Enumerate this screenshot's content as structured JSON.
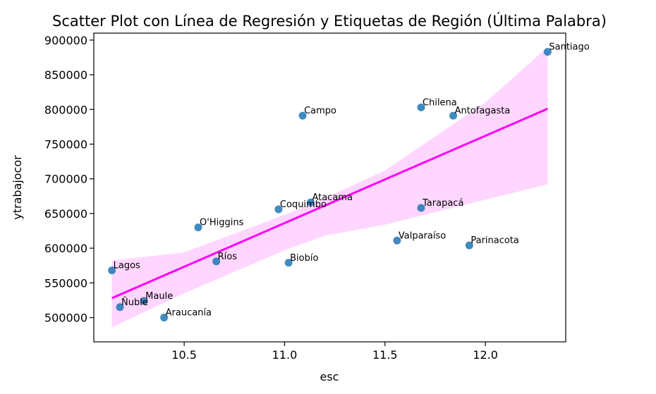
{
  "chart_data": {
    "type": "scatter",
    "title": "Scatter Plot con Línea de Regresión y Etiquetas de Región (Última Palabra)",
    "xlabel": "esc",
    "ylabel": "ytrabajocor",
    "xlim": [
      10.05,
      12.4
    ],
    "ylim": [
      465000,
      910000
    ],
    "x_ticks": [
      10.5,
      11.0,
      11.5,
      12.0
    ],
    "x_tick_labels": [
      "10.5",
      "11.0",
      "11.5",
      "12.0"
    ],
    "y_ticks": [
      500000,
      550000,
      600000,
      650000,
      700000,
      750000,
      800000,
      850000,
      900000
    ],
    "y_tick_labels": [
      "500000",
      "550000",
      "600000",
      "650000",
      "700000",
      "750000",
      "800000",
      "850000",
      "900000"
    ],
    "grid": false,
    "colors": {
      "points": "#1f77b4",
      "regression_line": "#ff00ff",
      "confidence_band": "#ff00ff"
    },
    "points": [
      {
        "label": "Santiago",
        "x": 12.31,
        "y": 883000
      },
      {
        "label": "Chilena",
        "x": 11.68,
        "y": 803000
      },
      {
        "label": "Antofagasta",
        "x": 11.84,
        "y": 791000
      },
      {
        "label": "Campo",
        "x": 11.09,
        "y": 791000
      },
      {
        "label": "Atacama",
        "x": 11.13,
        "y": 666000
      },
      {
        "label": "Coquimbo",
        "x": 10.97,
        "y": 656000
      },
      {
        "label": "Tarapacá",
        "x": 11.68,
        "y": 658000
      },
      {
        "label": "O'Higgins",
        "x": 10.57,
        "y": 630000
      },
      {
        "label": "Valparaíso",
        "x": 11.56,
        "y": 611000
      },
      {
        "label": "Parinacota",
        "x": 11.92,
        "y": 604000
      },
      {
        "label": "Ríos",
        "x": 10.66,
        "y": 581000
      },
      {
        "label": "Biobío",
        "x": 11.02,
        "y": 579000
      },
      {
        "label": "Lagos",
        "x": 10.14,
        "y": 568000
      },
      {
        "label": "Maule",
        "x": 10.3,
        "y": 524000
      },
      {
        "label": "Ñuble",
        "x": 10.18,
        "y": 515000
      },
      {
        "label": "Araucanía",
        "x": 10.4,
        "y": 500000
      }
    ],
    "regression": {
      "x": [
        10.14,
        12.31
      ],
      "y": [
        528000,
        801000
      ]
    },
    "confidence_band": {
      "x": [
        10.14,
        10.5,
        11.0,
        11.2,
        11.5,
        12.0,
        12.31
      ],
      "lower": [
        486000,
        535000,
        597000,
        618000,
        634000,
        670000,
        692000
      ],
      "upper": [
        582000,
        594000,
        648000,
        672000,
        712000,
        810000,
        890000
      ]
    }
  }
}
